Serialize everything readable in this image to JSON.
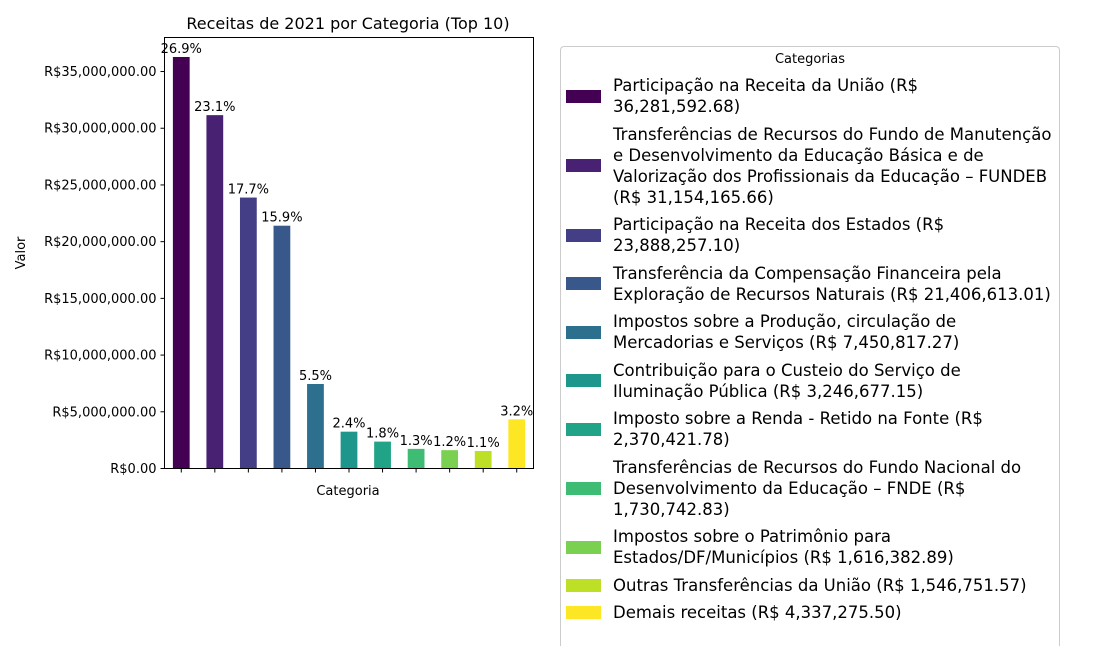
{
  "chart_data": {
    "type": "bar",
    "title": "Receitas de 2021 por Categoria (Top 10)",
    "xlabel": "Categoria",
    "ylabel": "Valor",
    "ylim": [
      0,
      38000000
    ],
    "yticks": [
      0,
      5000000,
      10000000,
      15000000,
      20000000,
      25000000,
      30000000,
      35000000
    ],
    "ytick_labels": [
      "R$0.00",
      "R$5,000,000.00",
      "R$10,000,000.00",
      "R$15,000,000.00",
      "R$20,000,000.00",
      "R$25,000,000.00",
      "R$30,000,000.00",
      "R$35,000,000.00"
    ],
    "grid": false,
    "legend_title": "Categorias",
    "legend_position": "right",
    "categories": [
      {
        "label": "Participação na Receita da União (R$ 36,281,592.68)",
        "lines": [
          "Participação na Receita da União (R$",
          "36,281,592.68)"
        ],
        "value": 36281592.68,
        "pct": "26.9%",
        "color": "#440154"
      },
      {
        "label": "Transferências de Recursos do Fundo de Manutenção e Desenvolvimento da Educação Básica e de Valorização dos Profissionais da Educação – FUNDEB (R$ 31,154,165.66)",
        "lines": [
          "Transferências de Recursos do Fundo de Manutenção",
          "e Desenvolvimento da Educação Básica e de",
          "Valorização dos Profissionais da Educação – FUNDEB",
          "(R$ 31,154,165.66)"
        ],
        "value": 31154165.66,
        "pct": "23.1%",
        "color": "#482173"
      },
      {
        "label": "Participação na Receita dos Estados (R$ 23,888,257.10)",
        "lines": [
          "Participação na Receita dos Estados (R$",
          "23,888,257.10)"
        ],
        "value": 23888257.1,
        "pct": "17.7%",
        "color": "#433e85"
      },
      {
        "label": "Transferência da Compensação Financeira pela Exploração de Recursos Naturais (R$ 21,406,613.01)",
        "lines": [
          "Transferência da Compensação Financeira pela",
          "Exploração de Recursos Naturais (R$ 21,406,613.01)"
        ],
        "value": 21406613.01,
        "pct": "15.9%",
        "color": "#38588c"
      },
      {
        "label": "Impostos sobre a Produção, circulação de Mercadorias e Serviços (R$ 7,450,817.27)",
        "lines": [
          "Impostos sobre a Produção, circulação de",
          "Mercadorias e Serviços (R$ 7,450,817.27)"
        ],
        "value": 7450817.27,
        "pct": "5.5%",
        "color": "#2d708e"
      },
      {
        "label": "Contribuição para o Custeio do Serviço de Iluminação Pública (R$ 3,246,677.15)",
        "lines": [
          "Contribuição para o Custeio do Serviço de",
          "Iluminação Pública (R$ 3,246,677.15)"
        ],
        "value": 3246677.15,
        "pct": "2.4%",
        "color": "#1f968b"
      },
      {
        "label": "Imposto sobre a Renda - Retido na Fonte (R$ 2,370,421.78)",
        "lines": [
          "Imposto sobre a Renda - Retido na Fonte (R$",
          "2,370,421.78)"
        ],
        "value": 2370421.78,
        "pct": "1.8%",
        "color": "#20a386"
      },
      {
        "label": "Transferências de Recursos do Fundo Nacional do Desenvolvimento da Educação – FNDE (R$ 1,730,742.83)",
        "lines": [
          "Transferências de Recursos do Fundo Nacional do",
          "Desenvolvimento da Educação – FNDE (R$",
          "1,730,742.83)"
        ],
        "value": 1730742.83,
        "pct": "1.3%",
        "color": "#3fbc73"
      },
      {
        "label": "Impostos sobre o Patrimônio para Estados/DF/Municípios (R$ 1,616,382.89)",
        "lines": [
          "Impostos sobre o Patrimônio para",
          "Estados/DF/Municípios (R$ 1,616,382.89)"
        ],
        "value": 1616382.89,
        "pct": "1.2%",
        "color": "#7ad151"
      },
      {
        "label": "Outras Transferências da União (R$ 1,546,751.57)",
        "lines": [
          "Outras Transferências da União (R$ 1,546,751.57)"
        ],
        "value": 1546751.57,
        "pct": "1.1%",
        "color": "#bddf26"
      },
      {
        "label": "Demais receitas (R$ 4,337,275.50)",
        "lines": [
          "Demais receitas (R$ 4,337,275.50)"
        ],
        "value": 4337275.5,
        "pct": "3.2%",
        "color": "#fde725"
      }
    ]
  }
}
